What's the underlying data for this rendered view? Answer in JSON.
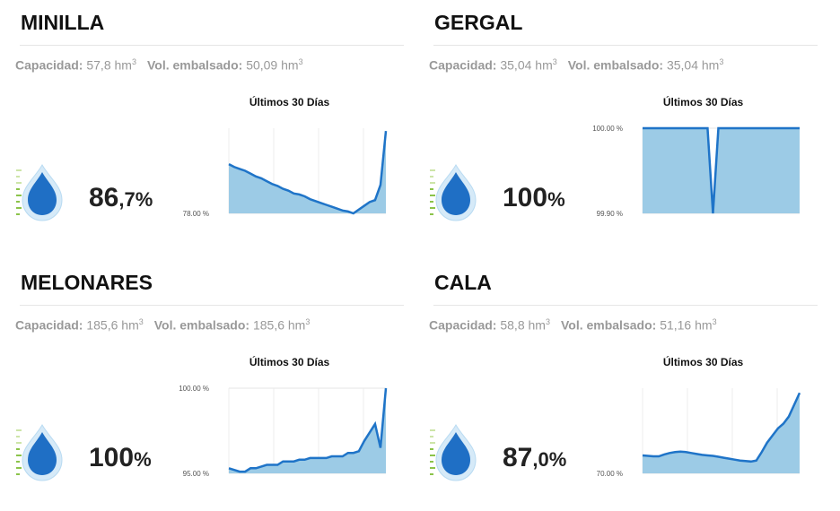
{
  "cards": [
    {
      "name": "MINILLA",
      "capacity_label": "Capacidad:",
      "capacity": "57,8 hm",
      "capacity_sup": "3",
      "volume_label": "Vol. embalsado:",
      "volume": "50,09 hm",
      "volume_sup": "3",
      "percent": "86",
      "percent_decimal": ",7",
      "percent_unit": "%"
    },
    {
      "name": "GERGAL",
      "capacity_label": "Capacidad:",
      "capacity": "35,04 hm",
      "capacity_sup": "3",
      "volume_label": "Vol. embalsado:",
      "volume": "35,04 hm",
      "volume_sup": "3",
      "percent": "100",
      "percent_unit": "%"
    },
    {
      "name": "MELONARES",
      "capacity_label": "Capacidad:",
      "capacity": "185,6 hm",
      "capacity_sup": "3",
      "volume_label": "Vol. embalsado:",
      "volume": "185,6 hm",
      "volume_sup": "3",
      "percent": "100",
      "percent_unit": "%"
    },
    {
      "name": "CALA",
      "capacity_label": "Capacidad:",
      "capacity": "58,8 hm",
      "capacity_sup": "3",
      "volume_label": "Vol. embalsado:",
      "volume": "51,16 hm",
      "volume_sup": "3",
      "percent": "87",
      "percent_decimal": ",0",
      "percent_unit": "%"
    }
  ],
  "chart_data": [
    {
      "type": "area",
      "title": "Últimos 30 Días",
      "color": "#1f74c8",
      "fill": "#9ccbe6",
      "values": [
        83.2,
        82.9,
        82.7,
        82.5,
        82.2,
        81.9,
        81.7,
        81.4,
        81.1,
        80.9,
        80.6,
        80.4,
        80.1,
        80.0,
        79.8,
        79.5,
        79.3,
        79.1,
        78.9,
        78.7,
        78.5,
        78.3,
        78.2,
        78.0,
        78.4,
        78.8,
        79.2,
        79.4,
        81.0,
        86.7
      ],
      "ylim": [
        78,
        87
      ],
      "yticks": [
        {
          "value": 78,
          "label": "78.00 %"
        }
      ],
      "grid": true
    },
    {
      "type": "area",
      "title": "Últimos 30 Días",
      "color": "#1f74c8",
      "fill": "#9ccbe6",
      "values": [
        100,
        100,
        100,
        100,
        100,
        100,
        100,
        100,
        100,
        100,
        100,
        100,
        100,
        99.9,
        100,
        100,
        100,
        100,
        100,
        100,
        100,
        100,
        100,
        100,
        100,
        100,
        100,
        100,
        100,
        100
      ],
      "ylim": [
        99.9,
        100
      ],
      "yticks": [
        {
          "value": 99.9,
          "label": "99.90 %"
        },
        {
          "value": 100,
          "label": "100.00 %"
        }
      ],
      "grid": true
    },
    {
      "type": "area",
      "title": "Últimos 30 Días",
      "color": "#1f74c8",
      "fill": "#9ccbe6",
      "values": [
        95.3,
        95.2,
        95.1,
        95.1,
        95.3,
        95.3,
        95.4,
        95.5,
        95.5,
        95.5,
        95.7,
        95.7,
        95.7,
        95.8,
        95.8,
        95.9,
        95.9,
        95.9,
        95.9,
        96.0,
        96.0,
        96.0,
        96.2,
        96.2,
        96.3,
        96.9,
        97.4,
        97.9,
        96.5,
        100.0
      ],
      "ylim": [
        95,
        100
      ],
      "yticks": [
        {
          "value": 95,
          "label": "95.00 %"
        },
        {
          "value": 100,
          "label": "100.00 %"
        }
      ],
      "grid": true
    },
    {
      "type": "area",
      "title": "Últimos 30 Días",
      "color": "#1f74c8",
      "fill": "#9ccbe6",
      "values": [
        73.8,
        73.7,
        73.6,
        73.6,
        74.0,
        74.3,
        74.5,
        74.6,
        74.5,
        74.3,
        74.1,
        73.9,
        73.8,
        73.7,
        73.5,
        73.3,
        73.1,
        72.9,
        72.7,
        72.6,
        72.5,
        72.7,
        74.5,
        76.5,
        78.0,
        79.5,
        80.5,
        82.0,
        84.5,
        87.0
      ],
      "ylim": [
        70,
        88
      ],
      "yticks": [
        {
          "value": 70,
          "label": "70.00 %"
        }
      ],
      "grid": true
    }
  ]
}
